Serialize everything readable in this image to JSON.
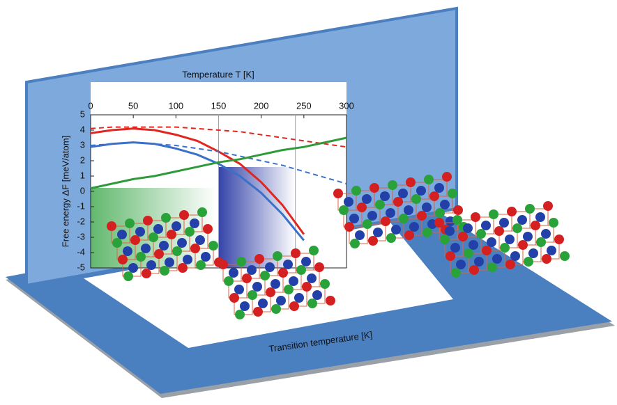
{
  "chart_data": {
    "type": "line",
    "x_label": "Temperature T [K]",
    "y_label": "Free energy ΔF [meV/atom]",
    "annotation": "Transition temperature [K]",
    "x": [
      0,
      25,
      50,
      75,
      100,
      125,
      150,
      175,
      200,
      225,
      250,
      275,
      300
    ],
    "xlim": [
      0,
      300
    ],
    "xticks": [
      0,
      50,
      100,
      150,
      200,
      250,
      300
    ],
    "ylim": [
      -5,
      5
    ],
    "yticks": [
      -5,
      -4,
      -3,
      -2,
      -1,
      0,
      1,
      2,
      3,
      4,
      5
    ],
    "vlines": [
      150,
      240
    ],
    "series": [
      {
        "color": "#e0261e",
        "dash": false,
        "values": [
          3.8,
          4.0,
          4.1,
          4.0,
          3.7,
          3.3,
          2.6,
          1.8,
          0.6,
          -0.9,
          -2.8,
          null,
          null
        ]
      },
      {
        "color": "#e0261e",
        "dash": true,
        "values": [
          4.1,
          4.2,
          4.2,
          4.2,
          4.2,
          4.1,
          4.0,
          3.9,
          3.7,
          3.5,
          3.3,
          3.1,
          2.9
        ]
      },
      {
        "color": "#3a70c8",
        "dash": false,
        "values": [
          2.9,
          3.1,
          3.2,
          3.1,
          2.8,
          2.4,
          1.8,
          1.0,
          -0.1,
          -1.5,
          -3.2,
          null,
          null
        ]
      },
      {
        "color": "#3a70c8",
        "dash": true,
        "values": [
          3.0,
          3.1,
          3.2,
          3.1,
          3.0,
          2.8,
          2.6,
          2.3,
          2.0,
          1.7,
          1.3,
          0.9,
          0.5
        ]
      },
      {
        "color": "#2f9a3a",
        "dash": false,
        "values": [
          0.2,
          0.5,
          0.8,
          1.0,
          1.3,
          1.6,
          1.9,
          2.1,
          2.4,
          2.7,
          2.9,
          3.2,
          3.5
        ]
      }
    ]
  }
}
